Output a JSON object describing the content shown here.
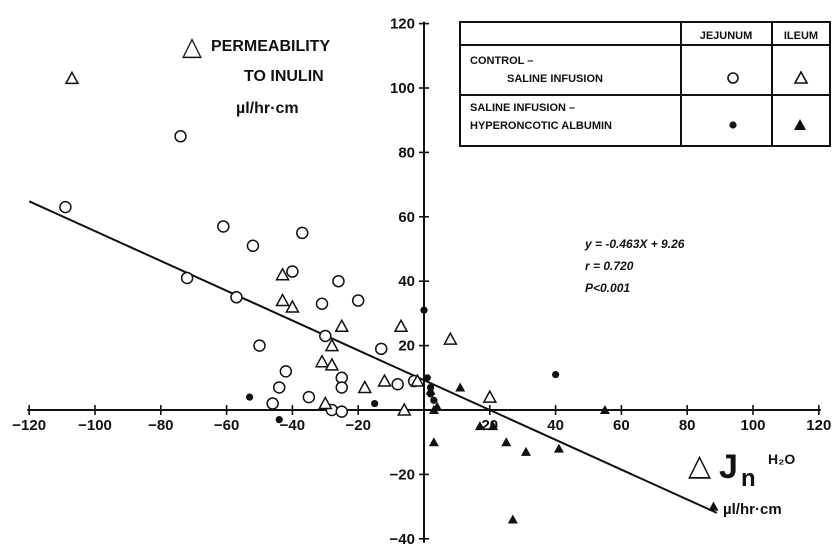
{
  "chart_data": {
    "type": "scatter",
    "xlim": [
      -120,
      120
    ],
    "ylim": [
      -40,
      120
    ],
    "x_ticks": [
      "-120",
      "-100",
      "-80",
      "-60",
      "-40",
      "-20",
      "20",
      "40",
      "60",
      "80",
      "100",
      "120"
    ],
    "y_ticks": [
      "-40",
      "-20",
      "20",
      "40",
      "60",
      "80",
      "100",
      "120"
    ],
    "y_title": {
      "delta": "△",
      "line1": "PERMEABILITY",
      "line2": "TO INULIN",
      "unit": "µl/hr·cm"
    },
    "x_title": {
      "delta": "△",
      "symbol": "J",
      "sub": "n",
      "sup": "H₂O",
      "unit": "µl/hr·cm"
    },
    "legend": {
      "col_headers": [
        "JEJUNUM",
        "ILEUM"
      ],
      "rows": [
        {
          "line1": "CONTROL –",
          "line2": "SALINE INFUSION",
          "jejunum_marker": "open-circle",
          "ileum_marker": "open-triangle"
        },
        {
          "line1": "SALINE INFUSION –",
          "line2": "HYPERONCOTIC ALBUMIN",
          "jejunum_marker": "filled-circle",
          "ileum_marker": "filled-triangle"
        }
      ]
    },
    "stats": {
      "line1": "y = -0.463X + 9.26",
      "line2": "r = 0.720",
      "line3": "P<0.001"
    },
    "regression": {
      "slope": -0.463,
      "intercept": 9.26,
      "x_from": -120,
      "x_to": 89
    },
    "series": [
      {
        "name": "CONTROL – SALINE INFUSION · JEJUNUM",
        "marker": "open-circle",
        "points": [
          [
            -109,
            63
          ],
          [
            -74,
            85
          ],
          [
            -72,
            41
          ],
          [
            -61,
            57
          ],
          [
            -57,
            35
          ],
          [
            -52,
            51
          ],
          [
            -50,
            20
          ],
          [
            -46,
            2
          ],
          [
            -44,
            7
          ],
          [
            -42,
            12
          ],
          [
            -40,
            43
          ],
          [
            -37,
            55
          ],
          [
            -35,
            4
          ],
          [
            -31,
            33
          ],
          [
            -30,
            23
          ],
          [
            -28,
            0
          ],
          [
            -26,
            40
          ],
          [
            -25,
            10
          ],
          [
            -25,
            7
          ],
          [
            -25,
            -0.5
          ],
          [
            -20,
            34
          ],
          [
            -13,
            19
          ],
          [
            -8,
            8
          ],
          [
            -3,
            9
          ]
        ]
      },
      {
        "name": "CONTROL – SALINE INFUSION · ILEUM",
        "marker": "open-triangle",
        "points": [
          [
            -107,
            103
          ],
          [
            -43,
            42
          ],
          [
            -43,
            34
          ],
          [
            -40,
            32
          ],
          [
            -31,
            15
          ],
          [
            -30,
            2
          ],
          [
            -28,
            20
          ],
          [
            -28,
            14
          ],
          [
            -25,
            26
          ],
          [
            -18,
            7
          ],
          [
            -12,
            9
          ],
          [
            -7,
            26
          ],
          [
            -6,
            0
          ],
          [
            -2,
            9
          ],
          [
            8,
            22
          ],
          [
            20,
            4
          ]
        ]
      },
      {
        "name": "SALINE INFUSION – HYPERONCOTIC ALBUMIN · JEJUNUM",
        "marker": "filled-circle",
        "points": [
          [
            -53,
            4
          ],
          [
            -44,
            -3
          ],
          [
            -15,
            2
          ],
          [
            0,
            31
          ],
          [
            1,
            10
          ],
          [
            2,
            5
          ],
          [
            2,
            7
          ],
          [
            3,
            3
          ],
          [
            40,
            11
          ]
        ]
      },
      {
        "name": "SALINE INFUSION – HYPERONCOTIC ALBUMIN · ILEUM",
        "marker": "filled-triangle",
        "points": [
          [
            2,
            6
          ],
          [
            3,
            0
          ],
          [
            3,
            -10
          ],
          [
            4,
            1
          ],
          [
            11,
            7
          ],
          [
            17,
            -5
          ],
          [
            21,
            -5
          ],
          [
            25,
            -10
          ],
          [
            27,
            -34
          ],
          [
            31,
            -13
          ],
          [
            41,
            -12
          ],
          [
            55,
            0
          ],
          [
            88,
            -30
          ]
        ]
      }
    ]
  }
}
